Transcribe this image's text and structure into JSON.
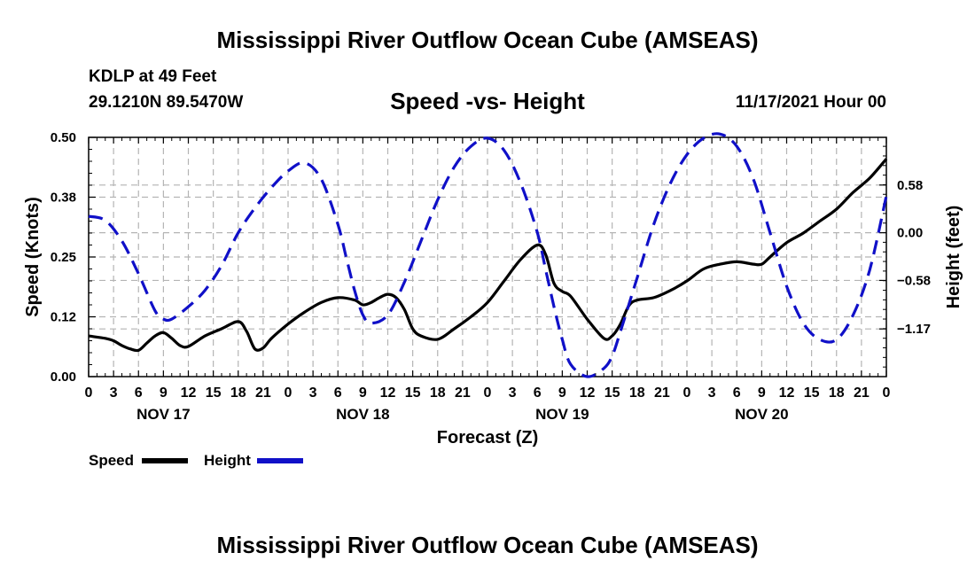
{
  "header": {
    "title": "Mississippi River Outflow Ocean Cube (AMSEAS)",
    "station": "KDLP at 49 Feet",
    "coords": "29.1210N  89.5470W",
    "datetime": "11/17/2021 Hour 00"
  },
  "footer": {
    "title": "Mississippi River Outflow Ocean Cube (AMSEAS)"
  },
  "legend": {
    "speed_label": "Speed",
    "height_label": "Height"
  },
  "chart_data": {
    "type": "line",
    "title": "Speed -vs- Height",
    "xlabel": "Forecast (Z)",
    "ylabel_left": "Speed (Knots)",
    "ylabel_right": "Height (feet)",
    "x_range_hours": [
      0,
      96
    ],
    "x_tick_labels": [
      "0",
      "3",
      "6",
      "9",
      "12",
      "15",
      "18",
      "21",
      "0",
      "3",
      "6",
      "9",
      "12",
      "15",
      "18",
      "21",
      "0",
      "3",
      "6",
      "9",
      "12",
      "15",
      "18",
      "21",
      "0",
      "3",
      "6",
      "9",
      "12",
      "15",
      "18",
      "21",
      "0"
    ],
    "x_tick_step_hours": 3,
    "day_labels": [
      {
        "label": "NOV 17",
        "hour": 9
      },
      {
        "label": "NOV 18",
        "hour": 33
      },
      {
        "label": "NOV 19",
        "hour": 57
      },
      {
        "label": "NOV 20",
        "hour": 81
      }
    ],
    "y_left": {
      "range": [
        0,
        0.5
      ],
      "ticks": [
        0,
        0.125,
        0.25,
        0.375,
        0.5
      ],
      "tick_labels": [
        "0.00",
        "0.12",
        "0.25",
        "0.38",
        "0.50"
      ]
    },
    "y_right": {
      "range": [
        -1.75,
        1.16
      ],
      "ticks": [
        0.58,
        0,
        -0.58,
        -1.17
      ],
      "tick_labels": [
        "0.58",
        "0.00",
        "−0.58",
        "−1.17"
      ]
    },
    "grid": true,
    "colors": {
      "speed": "#000000",
      "height": "#1010c8",
      "grid": "#b4b4b4"
    },
    "series": [
      {
        "name": "Speed",
        "axis": "left",
        "style": "solid",
        "x": [
          0,
          2,
          3,
          4,
          5,
          6,
          7,
          8,
          9,
          10,
          11,
          12,
          14,
          16,
          18,
          19,
          20,
          21,
          22,
          24,
          26,
          28,
          30,
          32,
          33,
          34,
          35,
          36,
          37,
          38,
          39,
          40,
          42,
          44,
          46,
          48,
          50,
          52,
          54,
          55,
          56,
          57,
          58,
          60,
          62,
          63,
          64,
          65,
          66,
          68,
          70,
          72,
          74,
          76,
          78,
          80,
          81,
          82,
          84,
          86,
          88,
          90,
          92,
          94,
          96
        ],
        "values": [
          0.085,
          0.08,
          0.075,
          0.065,
          0.058,
          0.055,
          0.07,
          0.085,
          0.092,
          0.08,
          0.065,
          0.063,
          0.085,
          0.1,
          0.115,
          0.095,
          0.058,
          0.06,
          0.08,
          0.11,
          0.135,
          0.155,
          0.165,
          0.16,
          0.15,
          0.155,
          0.165,
          0.172,
          0.165,
          0.14,
          0.1,
          0.085,
          0.078,
          0.1,
          0.125,
          0.155,
          0.2,
          0.245,
          0.275,
          0.255,
          0.195,
          0.178,
          0.168,
          0.12,
          0.08,
          0.085,
          0.11,
          0.148,
          0.16,
          0.165,
          0.18,
          0.2,
          0.225,
          0.235,
          0.24,
          0.235,
          0.235,
          0.25,
          0.28,
          0.3,
          0.325,
          0.35,
          0.385,
          0.415,
          0.455
        ]
      },
      {
        "name": "Height",
        "axis": "right",
        "style": "dashed",
        "x": [
          0,
          2,
          4,
          6,
          8,
          9,
          10,
          12,
          14,
          16,
          18,
          20,
          22,
          24,
          26,
          28,
          30,
          31,
          32,
          33,
          34,
          36,
          38,
          40,
          42,
          44,
          46,
          48,
          50,
          52,
          54,
          55,
          56,
          57,
          58,
          60,
          62,
          63,
          64,
          66,
          68,
          70,
          72,
          74,
          76,
          78,
          80,
          82,
          84,
          86,
          88,
          90,
          92,
          94,
          96
        ],
        "values": [
          0.2,
          0.15,
          -0.1,
          -0.5,
          -0.95,
          -1.05,
          -1.05,
          -0.9,
          -0.7,
          -0.4,
          0.0,
          0.3,
          0.55,
          0.75,
          0.85,
          0.65,
          0.1,
          -0.3,
          -0.7,
          -1.0,
          -1.1,
          -1.0,
          -0.6,
          -0.1,
          0.4,
          0.8,
          1.05,
          1.15,
          1.0,
          0.6,
          0.0,
          -0.45,
          -0.9,
          -1.3,
          -1.6,
          -1.75,
          -1.65,
          -1.5,
          -1.2,
          -0.55,
          0.1,
          0.6,
          0.95,
          1.15,
          1.2,
          1.05,
          0.65,
          0.0,
          -0.65,
          -1.1,
          -1.3,
          -1.3,
          -1.0,
          -0.45,
          0.45
        ]
      }
    ]
  }
}
